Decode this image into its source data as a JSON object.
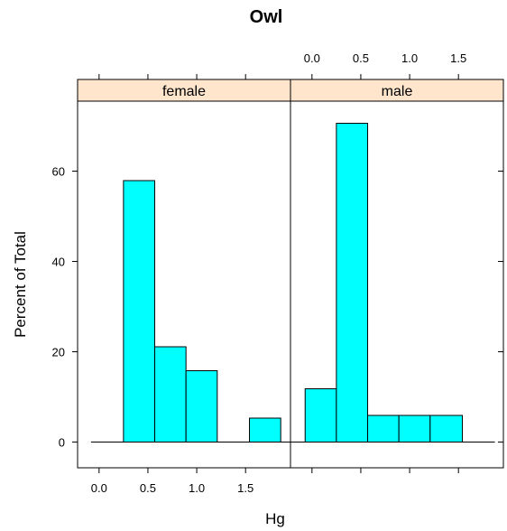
{
  "chart_data": {
    "type": "bar",
    "title": "Owl",
    "xlabel": "Hg",
    "ylabel": "Percent of Total",
    "xlim": [
      -0.22,
      1.96
    ],
    "ylim": [
      -5.7,
      75.5
    ],
    "x_ticks": [
      "0.0",
      "0.5",
      "1.0",
      "1.5"
    ],
    "x_tick_values": [
      0,
      0.5,
      1.0,
      1.5
    ],
    "y_ticks": [
      "0",
      "20",
      "40",
      "60"
    ],
    "y_tick_values": [
      0,
      20,
      40,
      60
    ],
    "bar_color": "#00ffff",
    "strip_color": "#ffe5cc",
    "panels": [
      {
        "name": "female",
        "bins": [
          {
            "x0": 0.25,
            "x1": 0.57,
            "value": 57.9
          },
          {
            "x0": 0.57,
            "x1": 0.89,
            "value": 21.1
          },
          {
            "x0": 0.89,
            "x1": 1.21,
            "value": 15.8
          },
          {
            "x0": 1.54,
            "x1": 1.86,
            "value": 5.3
          }
        ]
      },
      {
        "name": "male",
        "bins": [
          {
            "x0": -0.07,
            "x1": 0.25,
            "value": 11.8
          },
          {
            "x0": 0.25,
            "x1": 0.57,
            "value": 70.6
          },
          {
            "x0": 0.57,
            "x1": 0.89,
            "value": 5.9
          },
          {
            "x0": 0.89,
            "x1": 1.21,
            "value": 5.9
          },
          {
            "x0": 1.21,
            "x1": 1.54,
            "value": 5.9
          }
        ]
      }
    ]
  }
}
